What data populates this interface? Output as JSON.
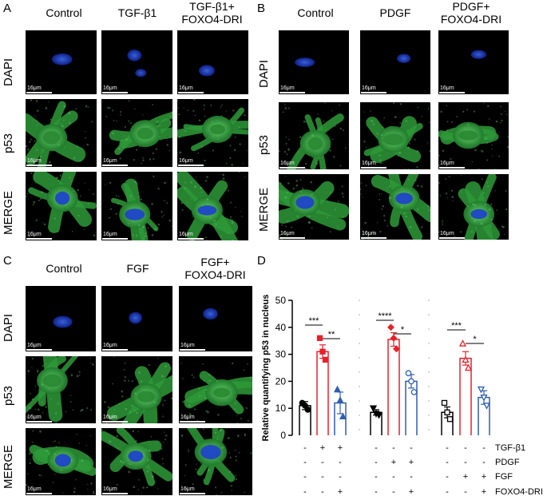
{
  "panels": {
    "A": {
      "letter": "A",
      "columns": [
        "Control",
        "TGF-β1",
        "TGF-β1+\nFOXO4-DRI"
      ],
      "rows": [
        "DAPI",
        "p53",
        "MERGE"
      ]
    },
    "B": {
      "letter": "B",
      "columns": [
        "Control",
        "PDGF",
        "PDGF+\nFOXO4-DRI"
      ],
      "rows": [
        "DAPI",
        "p53",
        "MERGE"
      ]
    },
    "C": {
      "letter": "C",
      "columns": [
        "Control",
        "FGF",
        "FGF+\nFOXO4-DRI"
      ],
      "rows": [
        "DAPI",
        "p53",
        "MERGE"
      ]
    },
    "D": {
      "letter": "D"
    }
  },
  "scale_bar_label": "16μm",
  "colors": {
    "dapi": "#1a3cc8",
    "p53": "#3fb24a",
    "black_series": "#000000",
    "red_series": "#e8202a",
    "blue_series": "#2f5fb0"
  },
  "chart_data": {
    "type": "bar",
    "ylabel": "Relative quantifying p53 in nucleus",
    "ylim": [
      0,
      50
    ],
    "yticks": [
      0,
      10,
      20,
      30,
      40,
      50
    ],
    "groups": [
      {
        "bars": [
          {
            "mean": 11,
            "sem": 1.5,
            "color": "#000000",
            "marker": "circle",
            "points": [
              12,
              11,
              9.5
            ]
          },
          {
            "mean": 31,
            "sem": 2.5,
            "color": "#e8202a",
            "marker": "square",
            "points": [
              36,
              31,
              28
            ]
          },
          {
            "mean": 12,
            "sem": 4,
            "color": "#2f5fb0",
            "marker": "triangle",
            "points": [
              17,
              13,
              7
            ]
          }
        ],
        "sig": [
          {
            "from": 0,
            "to": 1,
            "label": "***"
          },
          {
            "from": 1,
            "to": 2,
            "label": "**"
          }
        ]
      },
      {
        "bars": [
          {
            "mean": 8.5,
            "sem": 1,
            "color": "#000000",
            "marker": "triangle-down",
            "points": [
              10,
              8,
              7.5
            ]
          },
          {
            "mean": 35.5,
            "sem": 2.5,
            "color": "#e8202a",
            "marker": "diamond",
            "points": [
              40,
              36,
              32
            ]
          },
          {
            "mean": 20,
            "sem": 2.5,
            "color": "#2f5fb0",
            "marker": "circle-open",
            "points": [
              23,
              20,
              16
            ]
          }
        ],
        "sig": [
          {
            "from": 0,
            "to": 1,
            "label": "****"
          },
          {
            "from": 1,
            "to": 2,
            "label": "*"
          }
        ]
      },
      {
        "bars": [
          {
            "mean": 8.5,
            "sem": 2,
            "color": "#000000",
            "marker": "square-open",
            "points": [
              12,
              8.5,
              6
            ]
          },
          {
            "mean": 28.5,
            "sem": 2.5,
            "color": "#e8202a",
            "marker": "triangle-open",
            "points": [
              34,
              28,
              25
            ]
          },
          {
            "mean": 14,
            "sem": 2.5,
            "color": "#2f5fb0",
            "marker": "triangle-down-open",
            "points": [
              17,
              14,
              11
            ]
          }
        ],
        "sig": [
          {
            "from": 0,
            "to": 1,
            "label": "***"
          },
          {
            "from": 1,
            "to": 2,
            "label": "*"
          }
        ]
      }
    ],
    "treatment_rows": [
      {
        "label": "TGF-β1",
        "signs": [
          "-",
          "+",
          "+",
          "-",
          "-",
          "-",
          "-",
          "-",
          "-"
        ]
      },
      {
        "label": "PDGF",
        "signs": [
          "-",
          "-",
          "-",
          "-",
          "+",
          "+",
          "-",
          "-",
          "-"
        ]
      },
      {
        "label": "FGF",
        "signs": [
          "-",
          "-",
          "-",
          "-",
          "-",
          "-",
          "-",
          "+",
          "+"
        ]
      },
      {
        "label": "FOXO4-DRI",
        "signs": [
          "-",
          "-",
          "+",
          "-",
          "-",
          "+",
          "-",
          "-",
          "+"
        ]
      }
    ]
  }
}
